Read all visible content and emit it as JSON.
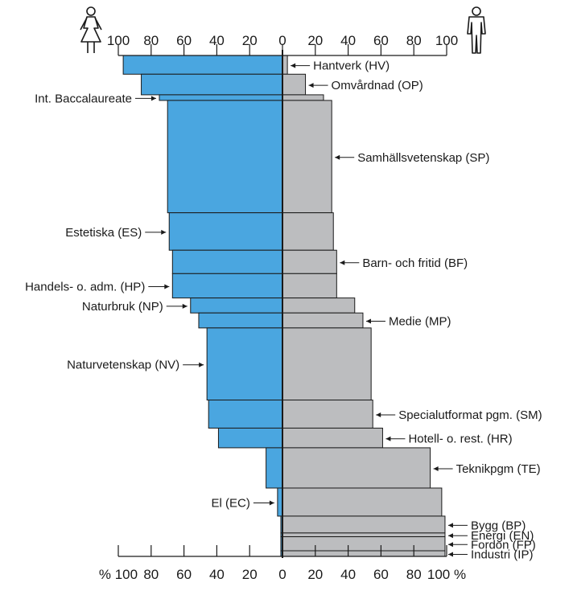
{
  "chart_data": {
    "type": "bar",
    "orientation": "horizontal-diverging",
    "x_unit": "%",
    "xlim": [
      0,
      100
    ],
    "top_ticks_left": [
      "100",
      "80",
      "60",
      "40",
      "20",
      "0"
    ],
    "top_ticks_right": [
      "20",
      "40",
      "60",
      "80",
      "100"
    ],
    "bottom_ticks_left": [
      "% 100",
      "80",
      "60",
      "40",
      "20",
      "0"
    ],
    "bottom_ticks_right": [
      "20",
      "40",
      "60",
      "80",
      "100 %"
    ],
    "colors": {
      "female": "#4aa6e0",
      "male": "#bcbdbf"
    },
    "legend_icons": [
      "woman-icon",
      "man-icon"
    ],
    "programs": [
      {
        "label": "Hantverk (HV)",
        "side": "right",
        "female_pct": 97,
        "male_pct": 3,
        "size": 2.0
      },
      {
        "label": "Omvårdnad (OP)",
        "side": "right",
        "female_pct": 86,
        "male_pct": 14,
        "size": 2.2
      },
      {
        "label": "Int. Baccalaureate",
        "side": "left",
        "female_pct": 75,
        "male_pct": 25,
        "size": 0.6
      },
      {
        "label": "Samhällsvetenskap (SP)",
        "side": "right",
        "female_pct": 70,
        "male_pct": 30,
        "size": 12.0
      },
      {
        "label": "Estetiska (ES)",
        "side": "left",
        "female_pct": 69,
        "male_pct": 31,
        "size": 4.0
      },
      {
        "label": "Barn- och fritid (BF)",
        "side": "right",
        "female_pct": 67,
        "male_pct": 33,
        "size": 2.5
      },
      {
        "label": "Handels- o. adm. (HP)",
        "side": "left",
        "female_pct": 67,
        "male_pct": 33,
        "size": 2.6
      },
      {
        "label": "Naturbruk (NP)",
        "side": "left",
        "female_pct": 56,
        "male_pct": 44,
        "size": 1.6
      },
      {
        "label": "Medie (MP)",
        "side": "right",
        "female_pct": 51,
        "male_pct": 49,
        "size": 1.6
      },
      {
        "label": "Naturvetenskap (NV)",
        "side": "left",
        "female_pct": 46,
        "male_pct": 54,
        "size": 7.7
      },
      {
        "label": "Specialutformat pgm. (SM)",
        "side": "right",
        "female_pct": 45,
        "male_pct": 55,
        "size": 3.0
      },
      {
        "label": "Hotell- o. rest. (HR)",
        "side": "right",
        "female_pct": 39,
        "male_pct": 61,
        "size": 2.1
      },
      {
        "label": "Teknikpgm (TE)",
        "side": "right",
        "female_pct": 10,
        "male_pct": 90,
        "size": 4.3
      },
      {
        "label": "El (EC)",
        "side": "left",
        "female_pct": 3,
        "male_pct": 97,
        "size": 3.0
      },
      {
        "label": "Bygg (BP)",
        "side": "right",
        "female_pct": 1,
        "male_pct": 99,
        "size": 1.8
      },
      {
        "label": "Energi (EN)",
        "side": "right",
        "female_pct": 1,
        "male_pct": 99,
        "size": 0.4
      },
      {
        "label": "Fordon (FP)",
        "side": "right",
        "female_pct": 1,
        "male_pct": 99,
        "size": 1.5
      },
      {
        "label": "Industri (IP)",
        "side": "right",
        "female_pct": 1,
        "male_pct": 99,
        "size": 0.6
      }
    ]
  }
}
